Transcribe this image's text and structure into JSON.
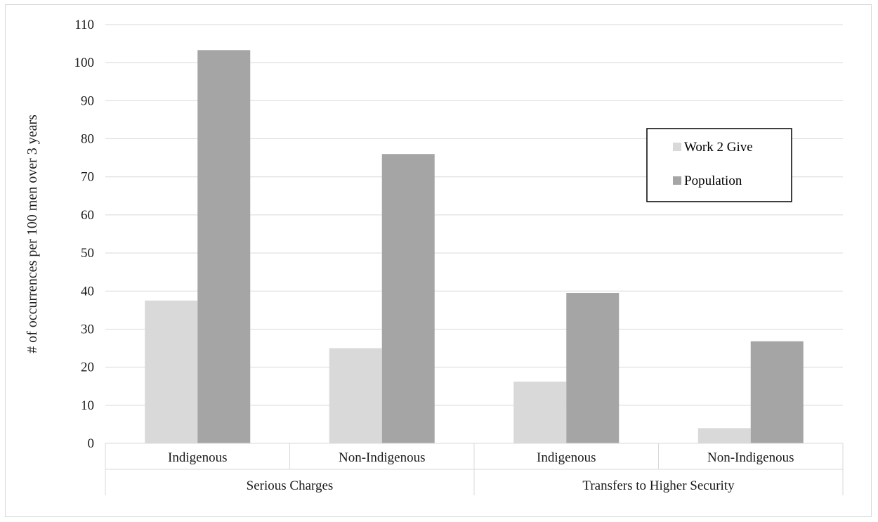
{
  "chart_data": {
    "type": "bar",
    "title": "",
    "xlabel": "",
    "ylabel": "# of occurrences per 100 men over 3 years",
    "ylim": [
      0,
      110
    ],
    "yticks": [
      0,
      10,
      20,
      30,
      40,
      50,
      60,
      70,
      80,
      90,
      100,
      110
    ],
    "grid": true,
    "legend_position": "right",
    "groups": [
      {
        "label": "Serious Charges",
        "categories": [
          "Indigenous",
          "Non-Indigenous"
        ]
      },
      {
        "label": "Transfers to Higher Security",
        "categories": [
          "Indigenous",
          "Non-Indigenous"
        ]
      }
    ],
    "categories": [
      "Indigenous",
      "Non-Indigenous",
      "Indigenous",
      "Non-Indigenous"
    ],
    "series": [
      {
        "name": "Work 2 Give",
        "color": "#d9d9d9",
        "values": [
          37.5,
          25,
          16.2,
          4
        ]
      },
      {
        "name": "Population",
        "color": "#a5a5a5",
        "values": [
          103.3,
          76,
          39.5,
          26.8
        ]
      }
    ]
  }
}
